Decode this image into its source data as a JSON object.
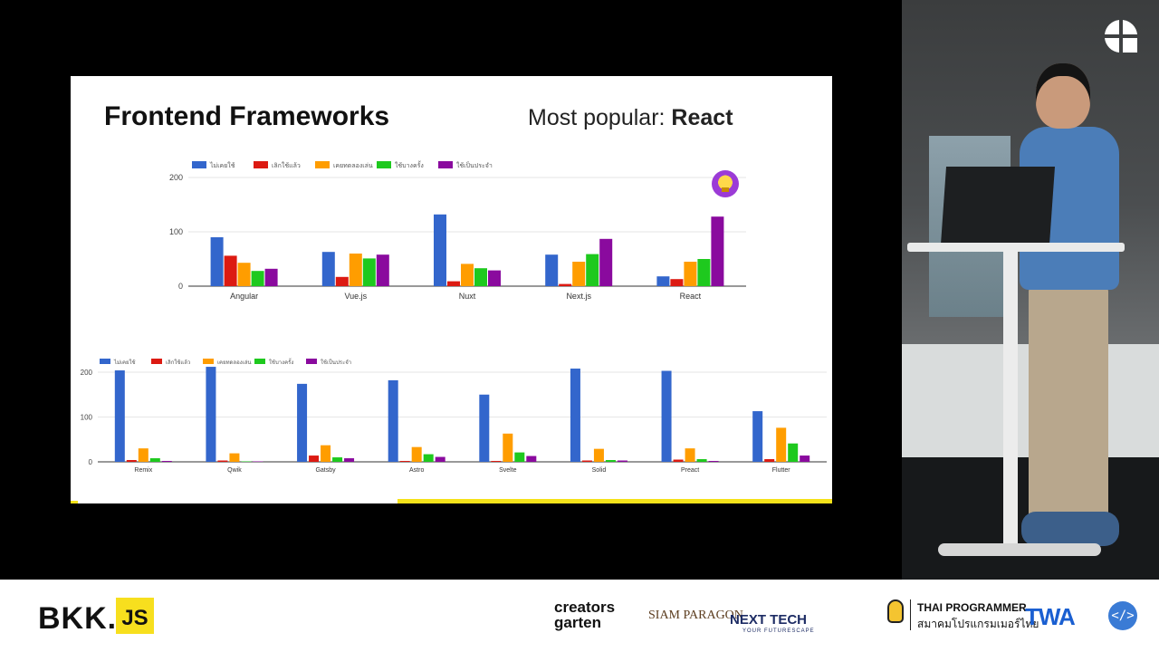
{
  "slide": {
    "title": "Frontend Frameworks",
    "subtitle_prefix": "Most popular: ",
    "subtitle_highlight": "React",
    "progress": 0.57
  },
  "colors": {
    "series": [
      "#3366cc",
      "#dc1a12",
      "#ff9d00",
      "#1ec91e",
      "#8a0a9e"
    ],
    "accent": "#f5e21a"
  },
  "chart_data": [
    {
      "type": "bar",
      "categories": [
        "Angular",
        "Vue.js",
        "Nuxt",
        "Next.js",
        "React"
      ],
      "series": [
        {
          "name": "ไม่เคยใช้",
          "values": [
            90,
            63,
            132,
            58,
            18
          ]
        },
        {
          "name": "เลิกใช้แล้ว",
          "values": [
            56,
            17,
            9,
            4,
            13
          ]
        },
        {
          "name": "เคยทดลองเล่น",
          "values": [
            43,
            60,
            41,
            45,
            45
          ]
        },
        {
          "name": "ใช้บางครั้ง",
          "values": [
            28,
            51,
            33,
            59,
            50
          ]
        },
        {
          "name": "ใช้เป็นประจำ",
          "values": [
            32,
            58,
            29,
            87,
            128
          ]
        }
      ],
      "yticks": [
        "0",
        "100",
        "200"
      ],
      "ylim": [
        0,
        200
      ],
      "grid": true,
      "legend": "top"
    },
    {
      "type": "bar",
      "categories": [
        "Remix",
        "Qwik",
        "Gatsby",
        "Astro",
        "Svelte",
        "Solid",
        "Preact",
        "Flutter"
      ],
      "series": [
        {
          "name": "ไม่เคยใช้",
          "values": [
            204,
            212,
            174,
            182,
            150,
            208,
            203,
            113
          ]
        },
        {
          "name": "เลิกใช้แล้ว",
          "values": [
            4,
            3,
            14,
            2,
            2,
            3,
            5,
            6
          ]
        },
        {
          "name": "เคยทดลองเล่น",
          "values": [
            30,
            19,
            37,
            33,
            63,
            29,
            30,
            76
          ]
        },
        {
          "name": "ใช้บางครั้ง",
          "values": [
            8,
            1,
            10,
            17,
            21,
            4,
            6,
            41
          ]
        },
        {
          "name": "ใช้เป็นประจำ",
          "values": [
            2,
            1,
            8,
            11,
            13,
            3,
            2,
            14
          ]
        }
      ],
      "yticks": [
        "0",
        "100",
        "200"
      ],
      "ylim": [
        0,
        200
      ],
      "grid": true,
      "legend": "top"
    }
  ],
  "sponsors": {
    "bkk": "BKK.",
    "js": "JS",
    "creators_line1": "creators",
    "creators_line2": "garten",
    "siam": "SIAM PARAGON",
    "nexttech": "NEXT TECH",
    "nexttech_sub": "YOUR FUTURESCAPE",
    "thai_programmer": "THAI PROGRAMMER",
    "thai_programmer_th": "สมาคมโปรแกรมเมอร์ไทย",
    "twa": "TWA",
    "code_badge": "</>"
  },
  "icons": {
    "trophy": "trophy-icon",
    "camera_logo": "venue-logo-icon"
  }
}
